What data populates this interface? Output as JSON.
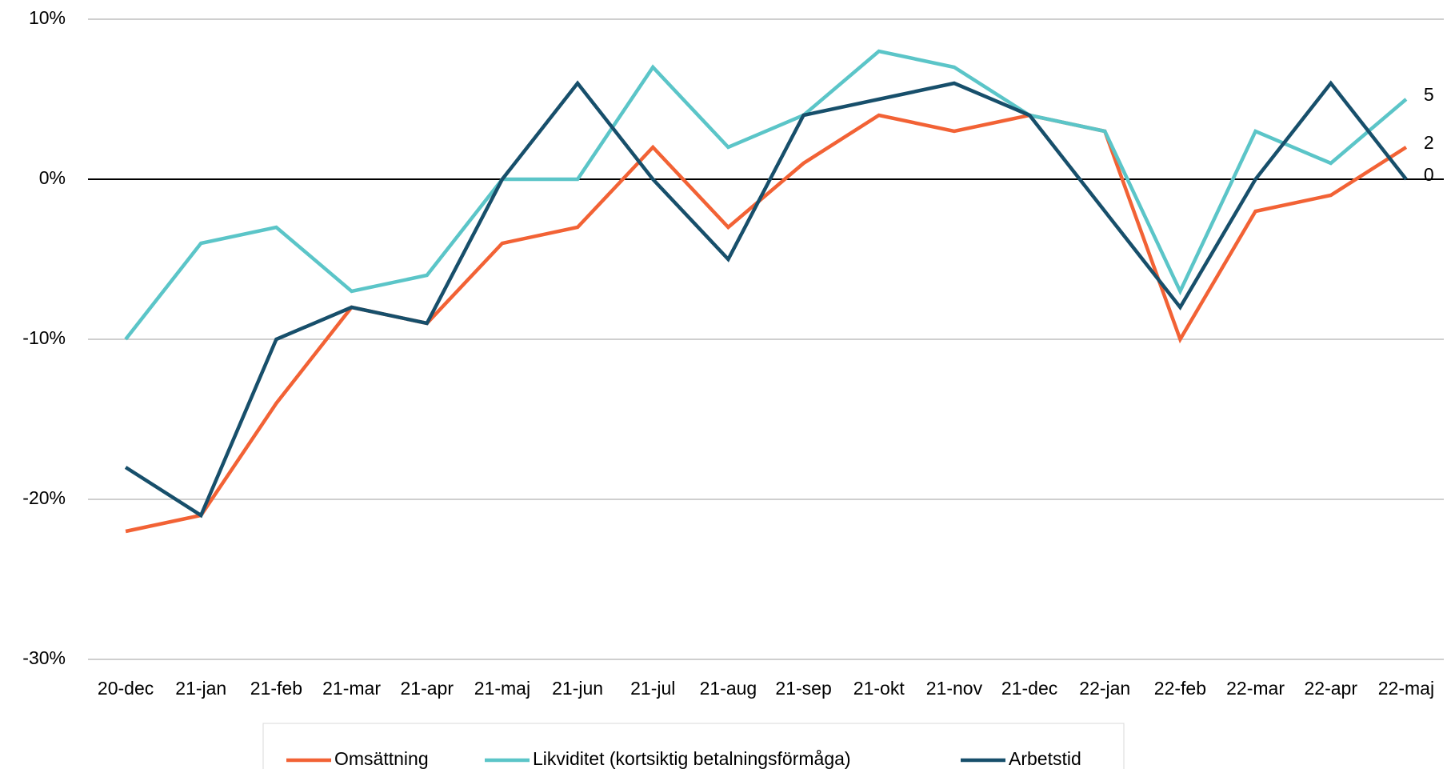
{
  "chart_data": {
    "type": "line",
    "categories": [
      "20-dec",
      "21-jan",
      "21-feb",
      "21-mar",
      "21-apr",
      "21-maj",
      "21-jun",
      "21-jul",
      "21-aug",
      "21-sep",
      "21-okt",
      "21-nov",
      "21-dec",
      "22-jan",
      "22-feb",
      "22-mar",
      "22-apr",
      "22-maj"
    ],
    "series": [
      {
        "name": "Omsättning",
        "color": "#f26235",
        "values": [
          -22,
          -21,
          -14,
          -8,
          -9,
          -4,
          -3,
          2,
          -3,
          1,
          4,
          3,
          4,
          3,
          -10,
          -2,
          -1,
          2
        ]
      },
      {
        "name": "Likviditet (kortsiktig betalningsförmåga)",
        "color": "#5bc5c8",
        "values": [
          -10,
          -4,
          -3,
          -7,
          -6,
          0,
          0,
          7,
          2,
          4,
          8,
          7,
          4,
          3,
          -7,
          3,
          1,
          5
        ]
      },
      {
        "name": "Arbetstid",
        "color": "#174f6b",
        "values": [
          -18,
          -21,
          -10,
          -8,
          -9,
          0,
          6,
          0,
          -5,
          4,
          5,
          6,
          4,
          -2,
          -8,
          0,
          6,
          0
        ]
      }
    ],
    "ylim": [
      -30,
      10
    ],
    "yticks": [
      {
        "value": -30,
        "label": "-30%"
      },
      {
        "value": -20,
        "label": "-20%"
      },
      {
        "value": -10,
        "label": "-10%"
      },
      {
        "value": 0,
        "label": "0%"
      },
      {
        "value": 10,
        "label": "10%"
      }
    ],
    "grid": true,
    "legend": "bottom"
  }
}
